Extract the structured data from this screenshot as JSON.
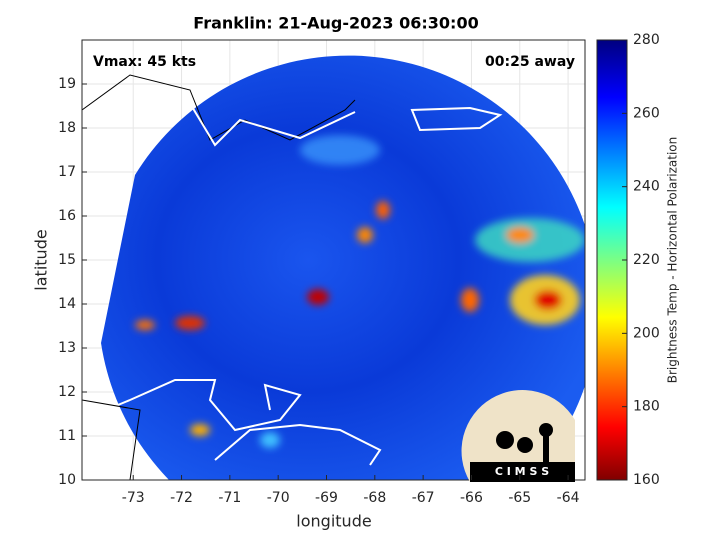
{
  "chart_data": {
    "type": "map",
    "title": "Franklin: 21-Aug-2023 06:30:00",
    "annotations": [
      "Vmax: 45 kts",
      "00:25 away"
    ],
    "xlabel": "longitude",
    "ylabel": "latitude",
    "xlim": [
      -74.06,
      -63.65
    ],
    "ylim": [
      10,
      20
    ],
    "xticks": [
      -73,
      -72,
      -71,
      -70,
      -69,
      -68,
      -67,
      -66,
      -65,
      -64
    ],
    "yticks": [
      10,
      11,
      12,
      13,
      14,
      15,
      16,
      17,
      18,
      19
    ],
    "grid": true,
    "colorbar": {
      "label": "Brightness Temp - Horizontal Polarization",
      "clim": [
        160,
        280
      ],
      "ticks": [
        160,
        180,
        200,
        220,
        240,
        260,
        280
      ]
    },
    "logo": "C I M S S"
  }
}
